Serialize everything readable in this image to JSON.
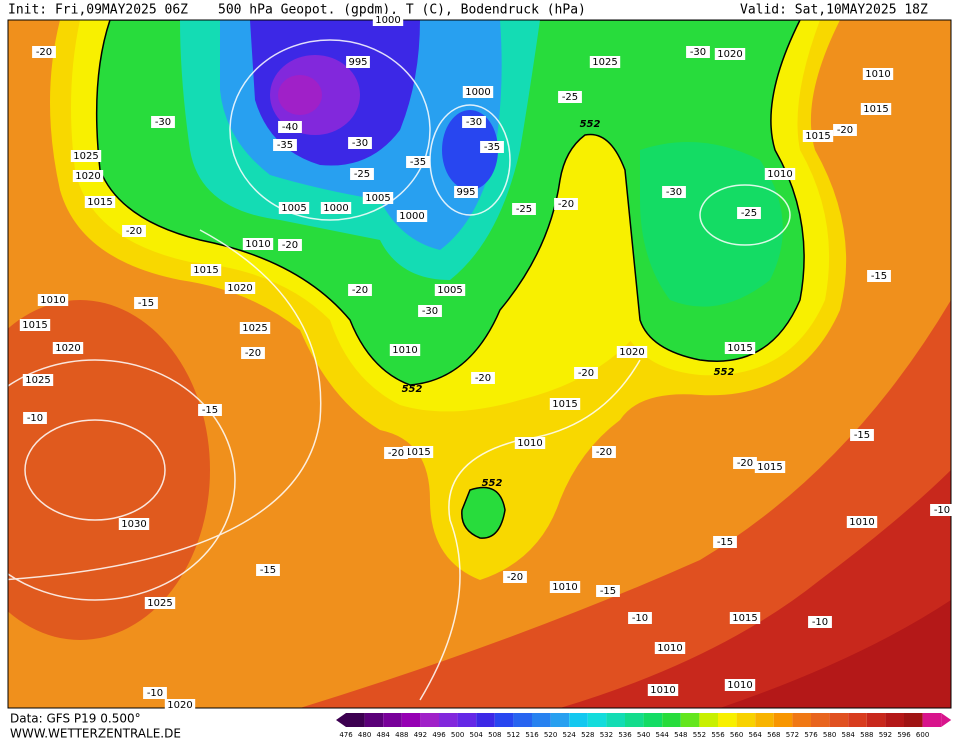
{
  "header": {
    "init": "Init: Fri,09MAY2025 06Z",
    "title": "500 hPa Geopot. (gpdm), T (C), Bodendruck (hPa)",
    "valid": "Valid: Sat,10MAY2025 18Z"
  },
  "footer": {
    "data": "Data: GFS P19 0.500°",
    "site": "WWW.WETTERZENTRALE.DE"
  },
  "colorbar": {
    "values": [
      476,
      480,
      484,
      488,
      492,
      496,
      500,
      504,
      508,
      512,
      516,
      520,
      524,
      528,
      532,
      536,
      540,
      544,
      548,
      552,
      556,
      560,
      564,
      568,
      572,
      576,
      580,
      584,
      588,
      592,
      596,
      600
    ],
    "colors": [
      "#3c0050",
      "#5a0078",
      "#78009a",
      "#9600b4",
      "#a020c8",
      "#8228dc",
      "#6428e6",
      "#3c28e6",
      "#2846f0",
      "#2864f0",
      "#2882f0",
      "#28a0f0",
      "#14c8f0",
      "#14dcdc",
      "#14dcb4",
      "#14dc8c",
      "#14dc64",
      "#28dc3c",
      "#64e61e",
      "#c8f000",
      "#f8f000",
      "#f8d200",
      "#f8b400",
      "#f89600",
      "#f07814",
      "#e8641e",
      "#e05020",
      "#d83c1e",
      "#c8281c",
      "#b41818",
      "#a01414",
      "#d8148c"
    ]
  },
  "pressure_labels": [
    "1000",
    "995",
    "1000",
    "995",
    "1005",
    "1000",
    "1005",
    "1000",
    "1005",
    "1010",
    "1025",
    "1020",
    "1015",
    "1010",
    "1015",
    "1020",
    "1025",
    "1010",
    "1015",
    "1020",
    "1025",
    "1030",
    "1025",
    "1020",
    "1015",
    "1010",
    "1015",
    "1020",
    "1025",
    "1020",
    "1010",
    "1015",
    "1015",
    "1010",
    "1015",
    "1015",
    "1010",
    "1010",
    "1015",
    "1010",
    "1010",
    "1010"
  ],
  "temperature_labels": [
    "-20",
    "-30",
    "-40",
    "-35",
    "-30",
    "-25",
    "-35",
    "-30",
    "-35",
    "-25",
    "-25",
    "-20",
    "-30",
    "-20",
    "-30",
    "-25",
    "-20",
    "-20",
    "-15",
    "-20",
    "-30",
    "-20",
    "-15",
    "-10",
    "-20",
    "-20",
    "-20",
    "-20",
    "-15",
    "-15",
    "-20",
    "-15",
    "-15",
    "-20",
    "-15",
    "-10",
    "-10",
    "-10",
    "-10"
  ],
  "contour_552_labels": [
    "552",
    "552",
    "552",
    "552"
  ]
}
